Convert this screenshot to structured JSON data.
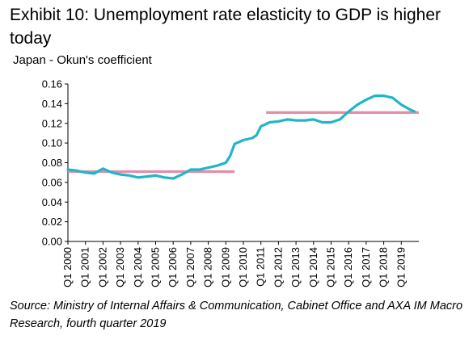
{
  "header": {
    "title": "Exhibit 10: Unemployment rate elasticity to GDP is higher today",
    "subtitle": "Japan - Okun's coefficient"
  },
  "footer": {
    "source": "Source: Ministry of Internal Affairs & Communication, Cabinet Office and AXA IM Macro Research, fourth quarter 2019"
  },
  "chart_data": {
    "type": "line",
    "title": "",
    "xlabel": "",
    "ylabel": "",
    "ylim": [
      0,
      0.16
    ],
    "yticks": [
      0.0,
      0.02,
      0.04,
      0.06,
      0.08,
      0.1,
      0.12,
      0.14,
      0.16
    ],
    "x_tick_labels": [
      "Q1 2000",
      "Q1 2001",
      "Q1 2002",
      "Q1 2003",
      "Q1 2004",
      "Q1 2005",
      "Q1 2006",
      "Q1 2007",
      "Q1 2008",
      "Q1 2009",
      "Q1 2010",
      "Q1 2011",
      "Q1 2012",
      "Q1 2013",
      "Q1 2014",
      "Q1 2015",
      "Q1 2016",
      "Q1 2017",
      "Q1 2018",
      "Q1 2019"
    ],
    "grid": false,
    "legend": "none",
    "colors": {
      "series": "#1fb6c9",
      "average": "#e28ea6"
    },
    "series": [
      {
        "style": "line",
        "x": [
          2000.0,
          2000.5,
          2001.0,
          2001.5,
          2002.0,
          2002.5,
          2003.0,
          2003.5,
          2004.0,
          2004.5,
          2005.0,
          2005.5,
          2006.0,
          2006.5,
          2007.0,
          2007.5,
          2008.0,
          2008.5,
          2009.0,
          2009.25,
          2009.5,
          2010.0,
          2010.5,
          2010.75,
          2011.0,
          2011.5,
          2012.0,
          2012.5,
          2013.0,
          2013.5,
          2014.0,
          2014.5,
          2015.0,
          2015.5,
          2016.0,
          2016.5,
          2017.0,
          2017.5,
          2018.0,
          2018.5,
          2019.0,
          2019.5,
          2019.75
        ],
        "values": [
          0.073,
          0.072,
          0.07,
          0.069,
          0.074,
          0.07,
          0.068,
          0.067,
          0.065,
          0.066,
          0.067,
          0.065,
          0.064,
          0.068,
          0.073,
          0.073,
          0.075,
          0.077,
          0.08,
          0.087,
          0.099,
          0.103,
          0.105,
          0.108,
          0.117,
          0.121,
          0.122,
          0.124,
          0.123,
          0.123,
          0.124,
          0.121,
          0.121,
          0.124,
          0.132,
          0.139,
          0.144,
          0.148,
          0.148,
          0.146,
          0.139,
          0.134,
          0.132
        ]
      },
      {
        "style": "average",
        "segments": [
          {
            "x": [
              2000.0,
              2009.5
            ],
            "value": 0.071
          },
          {
            "x": [
              2011.3,
              2020.0
            ],
            "value": 0.131
          }
        ]
      }
    ]
  }
}
